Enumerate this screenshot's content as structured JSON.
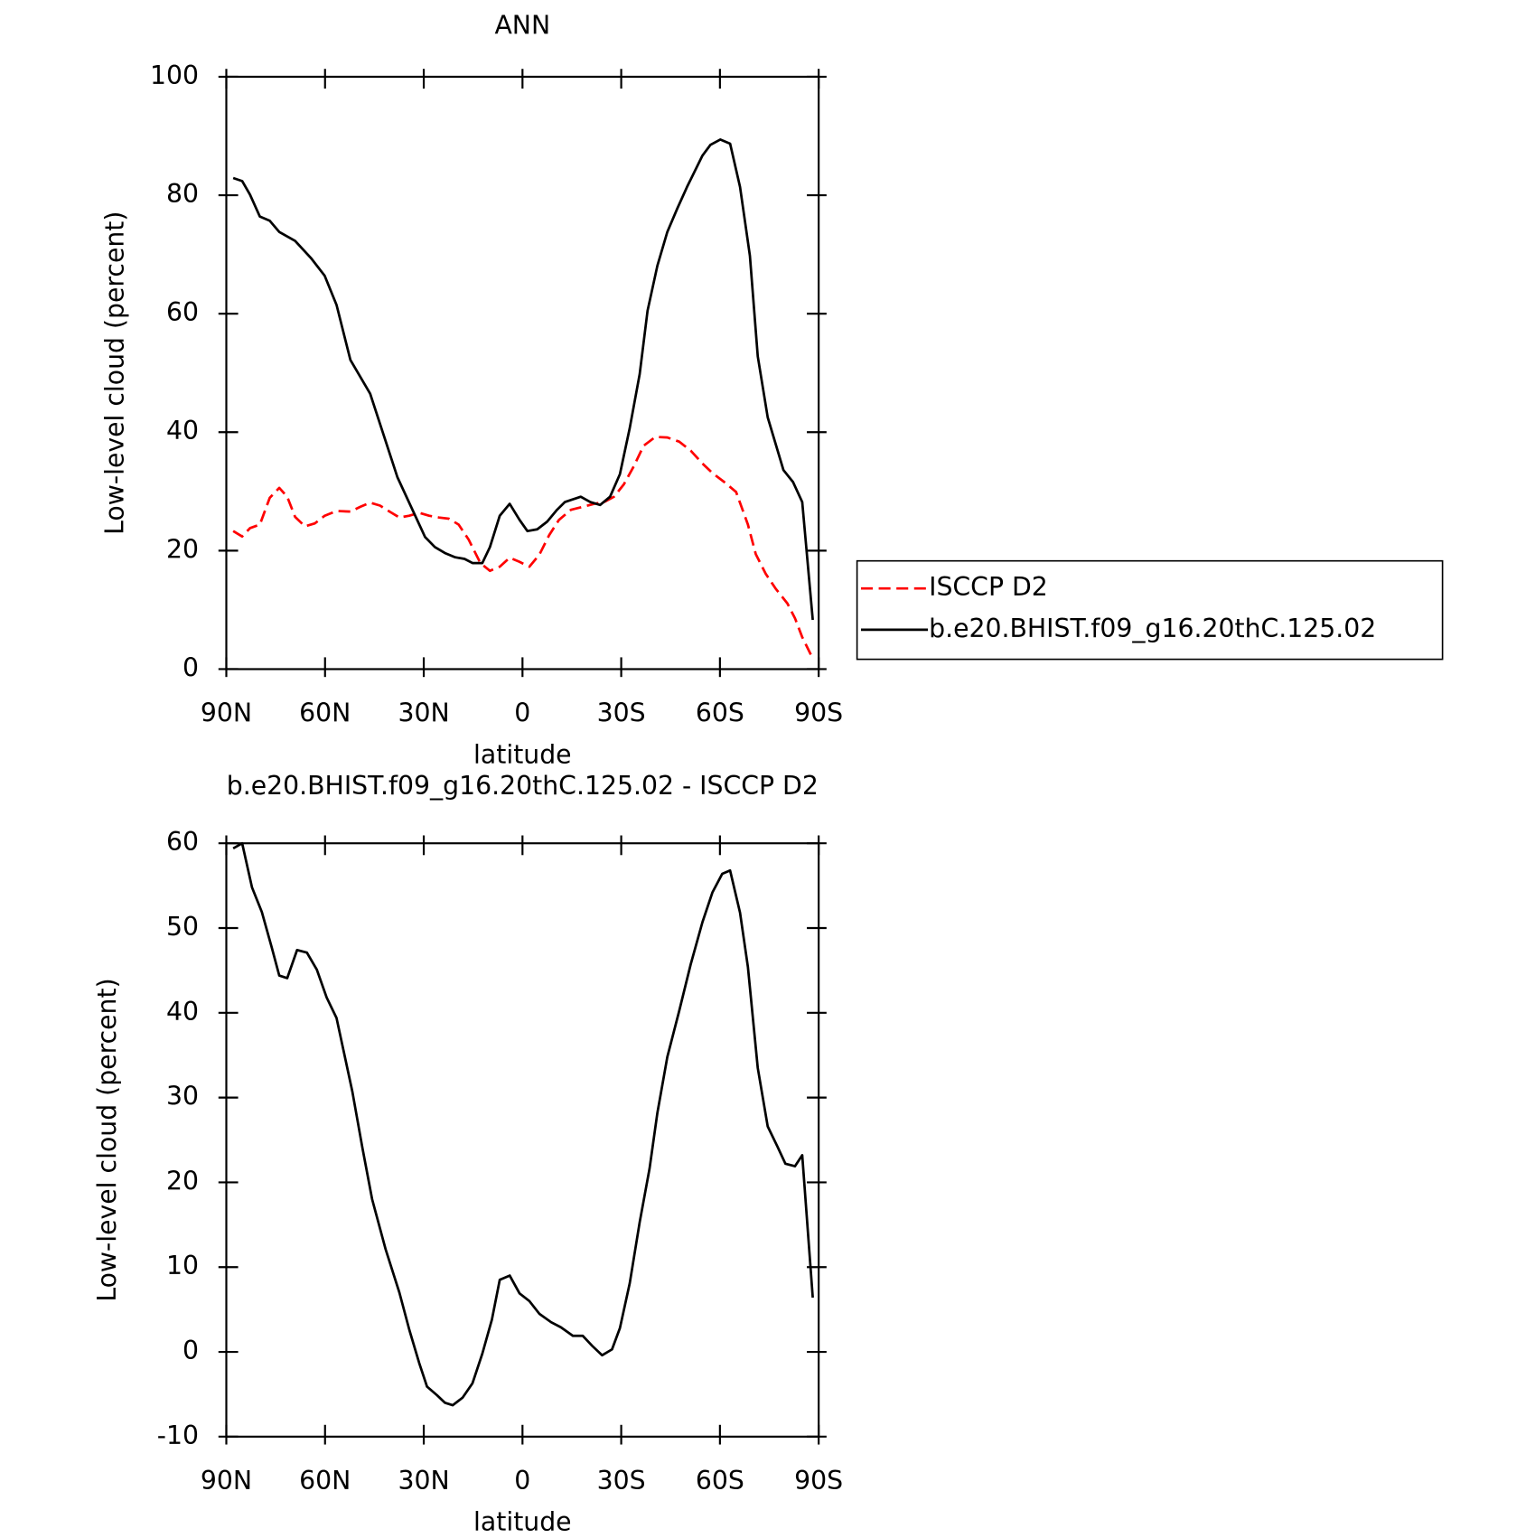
{
  "chart_data": [
    {
      "type": "line",
      "title": "ANN",
      "xlabel": "latitude",
      "ylabel": "Low-level cloud (percent)",
      "xlim": [
        90,
        -90
      ],
      "xticks": [
        {
          "value": 90,
          "label": "90N"
        },
        {
          "value": 60,
          "label": "60N"
        },
        {
          "value": 30,
          "label": "30N"
        },
        0,
        {
          "value": -30,
          "label": "30S"
        },
        {
          "value": -60,
          "label": "60S"
        },
        {
          "value": -90,
          "label": "90S"
        }
      ],
      "ylim": [
        0,
        100
      ],
      "yticks": [
        0,
        20,
        40,
        60,
        80,
        100
      ],
      "legend": "right",
      "series": [
        {
          "name": "ISCCP D2",
          "color": "#ff0000",
          "dash": true,
          "x": [
            87.9,
            85.2,
            82.8,
            79.8,
            76.8,
            73.9,
            71.5,
            69.1,
            66.1,
            63.1,
            60.1,
            56.5,
            52.3,
            49.3,
            46.3,
            43.3,
            40.4,
            37.4,
            34.4,
            31.4,
            28.4,
            25.4,
            22.4,
            19.4,
            16.4,
            12.8,
            9.9,
            6.9,
            3.9,
            0.9,
            -2.1,
            -5.1,
            -8.1,
            -11.1,
            -14.7,
            -18.3,
            -21.8,
            -24.8,
            -27.8,
            -30.8,
            -33.8,
            -36.8,
            -40.4,
            -44.0,
            -47.6,
            -51.1,
            -54.7,
            -57.7,
            -61.3,
            -64.9,
            -68.5,
            -70.9,
            -73.9,
            -76.9,
            -80.5,
            -82.8,
            -85.0,
            -88.2
          ],
          "values": [
            23.3,
            22.4,
            23.8,
            24.4,
            28.9,
            30.6,
            29.1,
            25.7,
            24.1,
            24.6,
            25.9,
            26.7,
            26.6,
            27.4,
            28.1,
            27.6,
            26.6,
            25.6,
            25.9,
            26.4,
            25.9,
            25.6,
            25.4,
            24.4,
            21.9,
            17.9,
            16.6,
            17.3,
            18.8,
            18.1,
            17.3,
            19.3,
            22.6,
            25.2,
            26.9,
            27.4,
            27.9,
            28.2,
            29.1,
            31.2,
            34.2,
            37.7,
            39.2,
            39.1,
            38.4,
            36.9,
            34.7,
            33.1,
            31.6,
            29.9,
            24.4,
            19.4,
            16.1,
            13.6,
            11.1,
            8.6,
            5.4,
            1.8
          ]
        },
        {
          "name": "b.e20.BHIST.f09_g16.20thC.125.02",
          "color": "#000000",
          "x": [
            87.9,
            85.2,
            82.8,
            79.8,
            76.8,
            73.9,
            69.1,
            64.3,
            60.1,
            56.5,
            52.3,
            46.3,
            38.0,
            29.6,
            26.6,
            23.6,
            20.6,
            17.6,
            15.2,
            12.2,
            9.9,
            6.9,
            3.9,
            0.9,
            -1.5,
            -4.5,
            -7.5,
            -10.5,
            -12.9,
            -17.7,
            -20.6,
            -23.6,
            -26.6,
            -29.6,
            -32.6,
            -35.6,
            -38.0,
            -41.0,
            -44.0,
            -47.0,
            -50.0,
            -54.7,
            -57.1,
            -60.1,
            -63.1,
            -66.1,
            -69.1,
            -71.5,
            -74.5,
            -79.3,
            -82.2,
            -85.0,
            -88.2
          ],
          "values": [
            82.9,
            82.4,
            80.1,
            76.4,
            75.7,
            73.8,
            72.3,
            69.4,
            66.4,
            61.5,
            52.2,
            46.5,
            32.4,
            22.3,
            20.6,
            19.6,
            18.9,
            18.6,
            17.9,
            17.9,
            20.6,
            25.9,
            27.9,
            25.2,
            23.3,
            23.6,
            24.9,
            26.9,
            28.2,
            29.1,
            28.2,
            27.7,
            29.1,
            32.9,
            40.7,
            49.8,
            60.5,
            68.1,
            73.8,
            77.7,
            81.4,
            86.7,
            88.5,
            89.4,
            88.7,
            81.4,
            69.8,
            52.8,
            42.5,
            33.6,
            31.6,
            28.2,
            8.3
          ]
        }
      ]
    },
    {
      "type": "line",
      "title": "b.e20.BHIST.f09_g16.20thC.125.02 - ISCCP D2",
      "xlabel": "latitude",
      "ylabel": "Low-level cloud (percent)",
      "xlim": [
        90,
        -90
      ],
      "xticks": [
        {
          "value": 90,
          "label": "90N"
        },
        {
          "value": 60,
          "label": "60N"
        },
        {
          "value": 30,
          "label": "30N"
        },
        0,
        {
          "value": -30,
          "label": "30S"
        },
        {
          "value": -60,
          "label": "60S"
        },
        {
          "value": -90,
          "label": "90S"
        }
      ],
      "ylim": [
        -10,
        60
      ],
      "yticks": [
        -10,
        0,
        10,
        20,
        30,
        40,
        50,
        60
      ],
      "series": [
        {
          "color": "#000000",
          "x": [
            87.9,
            85.2,
            82.2,
            79.2,
            76.2,
            73.9,
            71.5,
            68.5,
            65.5,
            62.5,
            59.5,
            56.5,
            51.7,
            48.7,
            45.7,
            41.6,
            37.4,
            34.4,
            31.4,
            29.0,
            26.0,
            23.6,
            21.2,
            18.2,
            15.2,
            12.2,
            9.3,
            6.9,
            3.9,
            0.9,
            -2.1,
            -5.1,
            -8.7,
            -11.7,
            -15.3,
            -18.3,
            -21.2,
            -24.2,
            -27.2,
            -29.6,
            -32.6,
            -35.6,
            -38.6,
            -41.0,
            -44.0,
            -47.6,
            -51.1,
            -54.7,
            -57.7,
            -60.7,
            -63.1,
            -66.1,
            -68.5,
            -71.5,
            -74.5,
            -77.5,
            -79.9,
            -82.8,
            -85.0,
            -88.2
          ],
          "values": [
            59.4,
            60,
            54.8,
            51.9,
            47.7,
            44.4,
            44.1,
            47.4,
            47.1,
            45.1,
            41.8,
            39.4,
            30.7,
            24.2,
            18.0,
            12.1,
            7.0,
            2.6,
            -1.3,
            -4.1,
            -5.1,
            -6.0,
            -6.3,
            -5.4,
            -3.7,
            -0.2,
            3.8,
            8.5,
            9.0,
            6.9,
            6.0,
            4.5,
            3.5,
            2.9,
            1.9,
            1.9,
            0.7,
            -0.4,
            0.3,
            2.8,
            8.1,
            15.3,
            21.6,
            28.2,
            34.8,
            40.2,
            45.7,
            50.7,
            54.2,
            56.4,
            56.8,
            51.8,
            45.4,
            33.5,
            26.6,
            24.2,
            22.2,
            21.9,
            23.2,
            6.4
          ]
        }
      ]
    }
  ]
}
